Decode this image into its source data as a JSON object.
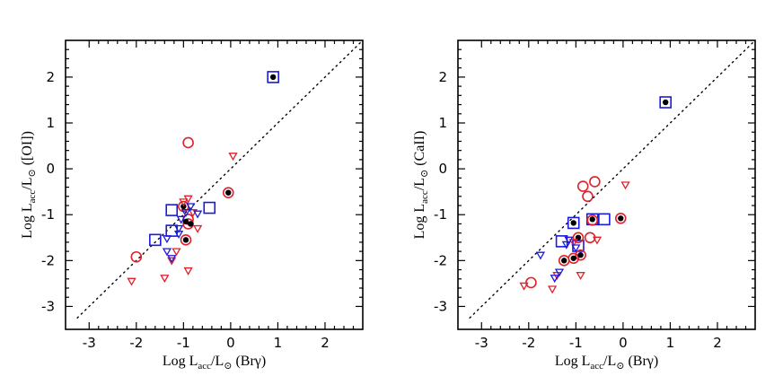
{
  "chart_data": [
    {
      "type": "scatter",
      "title": "",
      "xlabel": "Log L_acc/L_sun (Brγ)",
      "ylabel": "Log L_acc/L_sun ([OI])",
      "xlabel_parts": {
        "prefix": "Log L",
        "sub": "acc",
        "mid": "/L",
        "sun": "⊙",
        "suffix": " (Brγ)"
      },
      "ylabel_parts": {
        "prefix": "Log L",
        "sub": "acc",
        "mid": "/L",
        "sun": "⊙",
        "suffix": " ([OI])"
      },
      "xlim": [
        -3.5,
        2.8
      ],
      "ylim": [
        -3.5,
        2.8
      ],
      "xticks": [
        "-3",
        "-2",
        "-1",
        "0",
        "1",
        "2"
      ],
      "yticks": [
        "-3",
        "-2",
        "-1",
        "0",
        "1",
        "2"
      ],
      "reference_line": "y = x (dotted)",
      "series": [
        {
          "name": "blue squares",
          "marker": "square",
          "color": "#1a1adc",
          "points": [
            [
              -1.6,
              -1.55
            ],
            [
              -1.25,
              -0.9
            ],
            [
              -0.45,
              -0.85
            ],
            [
              -1.25,
              -1.35
            ],
            [
              0.9,
              2.0
            ]
          ]
        },
        {
          "name": "red circles",
          "marker": "circle",
          "color": "#e0202a",
          "points": [
            [
              -2.0,
              -1.92
            ],
            [
              -0.9,
              0.57
            ],
            [
              -0.9,
              -1.1
            ],
            [
              -0.05,
              -0.52
            ],
            [
              -1.0,
              -0.82
            ],
            [
              -0.95,
              -1.55
            ],
            [
              -0.9,
              -1.2
            ]
          ]
        },
        {
          "name": "filled black dots",
          "marker": "dot",
          "color": "#000000",
          "points": [
            [
              0.9,
              2.0
            ],
            [
              -0.05,
              -0.52
            ],
            [
              -1.0,
              -0.82
            ],
            [
              -0.95,
              -1.55
            ],
            [
              -0.95,
              -1.15
            ],
            [
              -0.85,
              -1.2
            ]
          ]
        },
        {
          "name": "red triangles",
          "marker": "triangle",
          "color": "#e0202a",
          "points": [
            [
              -2.1,
              -2.45
            ],
            [
              -1.4,
              -2.38
            ],
            [
              -1.25,
              -2.0
            ],
            [
              -0.9,
              -2.22
            ],
            [
              -1.0,
              -0.72
            ],
            [
              -0.9,
              -0.65
            ],
            [
              -0.7,
              -1.3
            ],
            [
              0.05,
              0.28
            ],
            [
              -0.8,
              -0.95
            ],
            [
              -1.15,
              -1.8
            ]
          ]
        },
        {
          "name": "blue triangles",
          "marker": "triangle",
          "color": "#1a1adc",
          "points": [
            [
              -1.35,
              -1.8
            ],
            [
              -1.35,
              -1.52
            ],
            [
              -1.1,
              -1.42
            ],
            [
              -0.95,
              -0.95
            ],
            [
              -0.85,
              -0.82
            ],
            [
              -0.7,
              -0.98
            ],
            [
              -1.25,
              -1.95
            ],
            [
              -1.1,
              -1.3
            ],
            [
              -1.05,
              -1.1
            ]
          ]
        }
      ]
    },
    {
      "type": "scatter",
      "title": "",
      "xlabel": "Log L_acc/L_sun (Brγ)",
      "ylabel": "Log L_acc/L_sun (CaII)",
      "xlabel_parts": {
        "prefix": "Log L",
        "sub": "acc",
        "mid": "/L",
        "sun": "⊙",
        "suffix": " (Brγ)"
      },
      "ylabel_parts": {
        "prefix": "Log L",
        "sub": "acc",
        "mid": "/L",
        "sun": "⊙",
        "suffix": " (CaII)"
      },
      "xlim": [
        -3.5,
        2.8
      ],
      "ylim": [
        -3.5,
        2.8
      ],
      "xticks": [
        "-3",
        "-2",
        "-1",
        "0",
        "1",
        "2"
      ],
      "yticks": [
        "-3",
        "-2",
        "-1",
        "0",
        "1",
        "2"
      ],
      "reference_line": "y = x (dotted)",
      "series": [
        {
          "name": "blue squares",
          "marker": "square",
          "color": "#1a1adc",
          "points": [
            [
              -1.05,
              -1.18
            ],
            [
              -0.65,
              -1.1
            ],
            [
              -0.4,
              -1.1
            ],
            [
              -0.95,
              -1.68
            ],
            [
              -1.3,
              -1.58
            ],
            [
              0.9,
              1.45
            ]
          ]
        },
        {
          "name": "red circles",
          "marker": "circle",
          "color": "#e0202a",
          "points": [
            [
              -1.95,
              -2.48
            ],
            [
              -0.85,
              -0.38
            ],
            [
              -0.75,
              -0.6
            ],
            [
              -0.6,
              -0.28
            ],
            [
              -0.05,
              -1.08
            ],
            [
              -0.7,
              -1.5
            ],
            [
              -1.25,
              -2.0
            ],
            [
              -1.05,
              -1.95
            ],
            [
              -0.9,
              -1.88
            ],
            [
              -0.95,
              -1.5
            ],
            [
              -0.65,
              -1.12
            ]
          ]
        },
        {
          "name": "filled black dots",
          "marker": "dot",
          "color": "#000000",
          "points": [
            [
              0.9,
              1.45
            ],
            [
              -1.05,
              -1.18
            ],
            [
              -0.65,
              -1.1
            ],
            [
              -0.05,
              -1.08
            ],
            [
              -1.25,
              -2.0
            ],
            [
              -1.05,
              -1.95
            ],
            [
              -0.9,
              -1.88
            ],
            [
              -0.95,
              -1.5
            ]
          ]
        },
        {
          "name": "red triangles",
          "marker": "triangle",
          "color": "#e0202a",
          "points": [
            [
              -2.1,
              -2.55
            ],
            [
              -1.5,
              -2.62
            ],
            [
              -1.4,
              -2.32
            ],
            [
              -0.9,
              -2.32
            ],
            [
              -0.55,
              -1.55
            ],
            [
              0.05,
              -0.35
            ],
            [
              -1.05,
              -1.6
            ]
          ]
        },
        {
          "name": "blue triangles",
          "marker": "triangle",
          "color": "#1a1adc",
          "points": [
            [
              -1.75,
              -1.88
            ],
            [
              -1.45,
              -2.38
            ],
            [
              -1.35,
              -2.25
            ],
            [
              -1.2,
              -1.65
            ],
            [
              -1.15,
              -1.55
            ],
            [
              -1.0,
              -1.72
            ]
          ]
        }
      ]
    }
  ]
}
